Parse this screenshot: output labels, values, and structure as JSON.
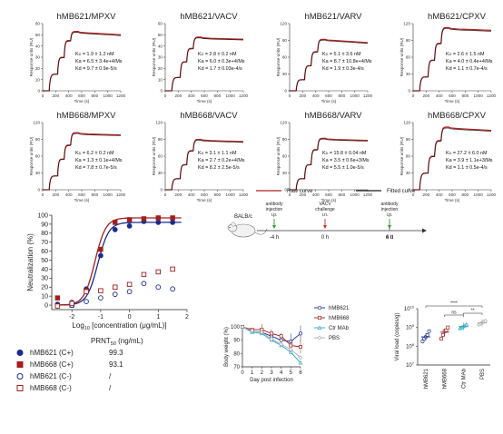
{
  "colors": {
    "raw": "#b01e1e",
    "fit": "#1a1a1a",
    "blue": "#1a2a8c",
    "red": "#a0201c",
    "teal": "#2aa6c6",
    "gray": "#aaaaaa"
  },
  "chart_data": [
    {
      "type": "line",
      "panel": "hMB621/MPXV",
      "title": "hMB621/MPXV",
      "xlabel": "Time (s)",
      "ylabel": "Response units (RU)",
      "xlim": [
        0,
        1200
      ],
      "ylim": [
        0,
        60
      ],
      "yticks": [
        0,
        10,
        20,
        30,
        40,
        50,
        60
      ],
      "xticks": [
        0,
        200,
        400,
        600,
        800,
        1000,
        1200
      ],
      "steps": [
        0,
        15,
        30,
        45,
        52
      ],
      "peak": 53,
      "end": 50,
      "params": [
        "KD = 1.9 ± 1.2 nM",
        "Ka = 6.5 ± 3.4e+4/Ms",
        "Kd = 9.7 ± 0.9e-5/s"
      ]
    },
    {
      "type": "line",
      "panel": "hMB621/VACV",
      "title": "hMB621/VACV",
      "xlabel": "Time (s)",
      "ylabel": "Response units (RU)",
      "xlim": [
        0,
        1200
      ],
      "ylim": [
        0,
        60
      ],
      "yticks": [
        0,
        10,
        20,
        30,
        40,
        50,
        60
      ],
      "xticks": [
        0,
        200,
        400,
        600,
        800,
        1000,
        1200
      ],
      "steps": [
        0,
        12,
        26,
        38,
        46
      ],
      "peak": 48,
      "end": 46,
      "params": [
        "KD = 2.8 ± 0.2 nM",
        "Ka = 6.0 ± 0.3e+4/Ms",
        "Kd = 1.7 ± 0.03e-4/s"
      ]
    },
    {
      "type": "line",
      "panel": "hMB621/VARV",
      "title": "hMB621/VARV",
      "xlabel": "Time (s)",
      "ylabel": "Response units (RU)",
      "xlim": [
        0,
        1200
      ],
      "ylim": [
        0,
        120
      ],
      "yticks": [
        0,
        30,
        60,
        90,
        120
      ],
      "xticks": [
        0,
        200,
        400,
        600,
        800,
        1000,
        1200
      ],
      "steps": [
        0,
        20,
        45,
        70,
        90
      ],
      "peak": 92,
      "end": 86,
      "params": [
        "KD = 5.1 ± 3.6 nM",
        "Ka = 8.7 ± 10.8e+4/Ms",
        "Kd = 1.9 ± 0.3e-4/s"
      ]
    },
    {
      "type": "line",
      "panel": "hMB621/CPXV",
      "title": "hMB621/CPXV",
      "xlabel": "Time (s)",
      "ylabel": "Response units (RU)",
      "xlim": [
        0,
        1200
      ],
      "ylim": [
        0,
        120
      ],
      "yticks": [
        0,
        30,
        60,
        90,
        120
      ],
      "xticks": [
        0,
        200,
        400,
        600,
        800,
        1000,
        1200
      ],
      "steps": [
        0,
        25,
        55,
        85,
        110
      ],
      "peak": 113,
      "end": 108,
      "params": [
        "KD = 2.6 ± 1.5 nM",
        "Ka = 4.0 ± 0.4e+4/Ms",
        "Kd = 1.1 ± 0.7e-4/s"
      ]
    },
    {
      "type": "line",
      "panel": "hMB668/MPXV",
      "title": "hMB668/MPXV",
      "xlabel": "Time (s)",
      "ylabel": "Response units (RU)",
      "xlim": [
        0,
        1200
      ],
      "ylim": [
        0,
        120
      ],
      "yticks": [
        0,
        30,
        60,
        90,
        120
      ],
      "xticks": [
        0,
        200,
        400,
        600,
        800,
        1000,
        1200
      ],
      "steps": [
        0,
        25,
        55,
        80,
        100
      ],
      "peak": 102,
      "end": 98,
      "params": [
        "KD = 6.2 ± 0.2 nM",
        "Ka = 1.3 ± 0.1e+4/Ms",
        "Kd = 7.8 ± 0.7e-5/s"
      ]
    },
    {
      "type": "line",
      "panel": "hMB668/VACV",
      "title": "hMB668/VACV",
      "xlabel": "Time (s)",
      "ylabel": "Response units (RU)",
      "xlim": [
        0,
        1200
      ],
      "ylim": [
        0,
        120
      ],
      "yticks": [
        0,
        30,
        60,
        90,
        120
      ],
      "xticks": [
        0,
        200,
        400,
        600,
        800,
        1000,
        1200
      ],
      "steps": [
        0,
        20,
        45,
        70,
        88
      ],
      "peak": 90,
      "end": 86,
      "params": [
        "KD = 3.1 ± 1.1 nM",
        "Ka = 2.7 ± 0.2e+4/Ms",
        "Kd = 8.2 ± 2.5e-5/s"
      ]
    },
    {
      "type": "line",
      "panel": "hMB668/VARV",
      "title": "hMB668/VARV",
      "xlabel": "Time (s)",
      "ylabel": "Response units (RU)",
      "xlim": [
        0,
        1200
      ],
      "ylim": [
        0,
        120
      ],
      "yticks": [
        0,
        30,
        60,
        90,
        120
      ],
      "xticks": [
        0,
        200,
        400,
        600,
        800,
        1000,
        1200
      ],
      "steps": [
        0,
        20,
        45,
        72,
        90
      ],
      "peak": 92,
      "end": 88,
      "params": [
        "KD = 15.8 ± 0.04 nM",
        "Ka = 3.5 ± 0.6e+3/Ms",
        "Kd = 5.5 ± 1.0e-5/s"
      ]
    },
    {
      "type": "line",
      "panel": "hMB668/CPXV",
      "title": "hMB668/CPXV",
      "xlabel": "Time (s)",
      "ylabel": "Response units (RU)",
      "xlim": [
        0,
        1200
      ],
      "ylim": [
        0,
        120
      ],
      "yticks": [
        0,
        30,
        60,
        90,
        120
      ],
      "xticks": [
        0,
        200,
        400,
        600,
        800,
        1000,
        1200
      ],
      "steps": [
        0,
        30,
        60,
        88,
        108
      ],
      "peak": 112,
      "end": 106,
      "params": [
        "KD = 27.2 ± 6.0 nM",
        "Ka = 3.9 ± 1.1e+3/Ms",
        "Kd = 1.1 ± 0.5e-4/s"
      ]
    },
    {
      "type": "scatter",
      "panel": "neutralization",
      "xlabel_prefix": "Log",
      "xlabel_sub": "10",
      "xlabel_suffix": " [concentration (μg/mL)]",
      "ylabel": "Neutralization (%)",
      "xlim": [
        -2.7,
        2
      ],
      "ylim": [
        -5,
        100
      ],
      "xticks": [
        -2,
        -1,
        0,
        1,
        2
      ],
      "yticks": [
        0,
        10,
        20,
        30,
        40,
        50,
        60,
        70,
        80,
        90,
        100
      ],
      "prnt_title": "PRNT50 (ng/mL)",
      "series": [
        {
          "name": "hMB621 (C+)",
          "prnt": "99.3",
          "style": "filled-circle",
          "x": [
            -2.5,
            -2.0,
            -1.5,
            -1.0,
            -0.5,
            0.0,
            0.5,
            1.0,
            1.5
          ],
          "y": [
            1,
            3,
            18,
            55,
            84,
            88,
            93,
            92,
            92
          ]
        },
        {
          "name": "hMB668 (C+)",
          "prnt": "93.1",
          "style": "filled-square",
          "x": [
            -2.5,
            -2.0,
            -1.5,
            -1.0,
            -0.5,
            0.0,
            0.5,
            1.0,
            1.5
          ],
          "y": [
            8,
            0,
            16,
            62,
            92,
            95,
            96,
            97,
            97
          ]
        },
        {
          "name": "hMB621 (C-)",
          "prnt": "/",
          "style": "open-circle",
          "x": [
            -2.5,
            -2.0,
            -1.5,
            -1.0,
            -0.5,
            0.0,
            0.5,
            1.0,
            1.5
          ],
          "y": [
            -1,
            0,
            4,
            8,
            12,
            15,
            24,
            20,
            18
          ]
        },
        {
          "name": "hMB668 (C-)",
          "prnt": "/",
          "style": "open-square",
          "x": [
            -2.5,
            -2.0,
            -1.5,
            -1.0,
            -0.5,
            0.0,
            0.5,
            1.0,
            1.5
          ],
          "y": [
            -1,
            2,
            15,
            16,
            20,
            23,
            34,
            37,
            40
          ]
        }
      ]
    },
    {
      "type": "line",
      "panel": "body-weight",
      "xlabel": "Day post infection",
      "ylabel": "Body weight (%)",
      "xlim": [
        0,
        6
      ],
      "ylim": [
        70,
        100
      ],
      "xticks": [
        0,
        1,
        2,
        3,
        4,
        5,
        6
      ],
      "yticks": [
        70,
        80,
        90,
        100
      ],
      "series": [
        {
          "name": "hMB621",
          "x": [
            0,
            1,
            2,
            3,
            4,
            5,
            6
          ],
          "y": [
            100,
            97,
            96,
            93,
            90,
            89,
            95
          ]
        },
        {
          "name": "hMB668",
          "x": [
            0,
            1,
            2,
            3,
            4,
            5,
            6
          ],
          "y": [
            100,
            98,
            98,
            95,
            93,
            86,
            85
          ]
        },
        {
          "name": "Ctr MAb",
          "x": [
            0,
            1,
            2,
            3,
            4,
            5,
            6
          ],
          "y": [
            100,
            96,
            95,
            90,
            86,
            81,
            73
          ]
        },
        {
          "name": "PBS",
          "x": [
            0,
            1,
            2,
            3,
            4,
            5,
            6
          ],
          "y": [
            100,
            97,
            96,
            91,
            87,
            83,
            77
          ]
        }
      ]
    },
    {
      "type": "scatter",
      "panel": "viral-load",
      "ylabel": "Viral load (copies/g)",
      "categories": [
        "hMB621",
        "hMB668",
        "Ctr MAb",
        "PBS"
      ],
      "ylog": true,
      "ylim_exp": [
        7,
        10
      ],
      "ytick_labels": [
        "10",
        "10",
        "10",
        "10"
      ],
      "ytick_exps": [
        "7",
        "8",
        "9",
        "10"
      ],
      "means_log": [
        8.5,
        8.75,
        9.05,
        9.25
      ],
      "points_log": [
        [
          8.25,
          8.4,
          8.5,
          8.6,
          8.8
        ],
        [
          8.4,
          8.6,
          8.8,
          8.85,
          9.0
        ],
        [
          8.95,
          9.0,
          9.05,
          9.1,
          9.15
        ],
        [
          9.15,
          9.2,
          9.25,
          9.3,
          9.35
        ]
      ],
      "significance": [
        {
          "from": 0,
          "to": 3,
          "label": "****"
        },
        {
          "from": 1,
          "to": 2,
          "label": "ns"
        },
        {
          "from": 2,
          "to": 3,
          "label": "**"
        }
      ]
    }
  ],
  "legend_kinetics": {
    "raw": "Raw curve",
    "fit": "Fitted curve"
  },
  "schedule": {
    "animal": "BALB/c",
    "steps": [
      {
        "label1": "antibody",
        "label2": "injection",
        "label3": "i.p.",
        "time": "-4 h"
      },
      {
        "label1": "VACV",
        "label2": "challenge",
        "label3": "i.n.",
        "time": "0 h"
      },
      {
        "label1": "antibody",
        "label2": "injection",
        "label3": "i.p.",
        "time": "4 h"
      }
    ],
    "end_time": "6 d"
  }
}
